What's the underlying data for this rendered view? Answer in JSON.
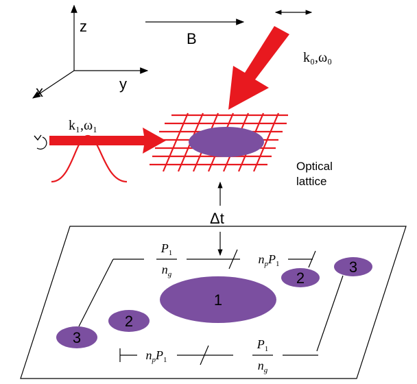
{
  "axes": {
    "z": "z",
    "y": "y",
    "x": "x"
  },
  "field": "B",
  "beam0": "k₀,ω₀",
  "beam1": "k₁,ω₁",
  "lattice": [
    "Optical",
    "lattice"
  ],
  "delay": "Δt",
  "spots": [
    "1",
    "2",
    "2",
    "3",
    "3"
  ],
  "spacing_top": {
    "num": "P",
    "num_sub": "1",
    "den": "n",
    "den_sub": "g"
  },
  "spacing_bottom": {
    "num": "P",
    "num_sub": "1",
    "den": "n",
    "den_sub": "g"
  },
  "shift_top": {
    "n": "n",
    "n_sub": "p",
    "p": "P",
    "p_sub": "1"
  },
  "shift_bottom": {
    "n": "n",
    "n_sub": "p",
    "p": "P",
    "p_sub": "1"
  }
}
